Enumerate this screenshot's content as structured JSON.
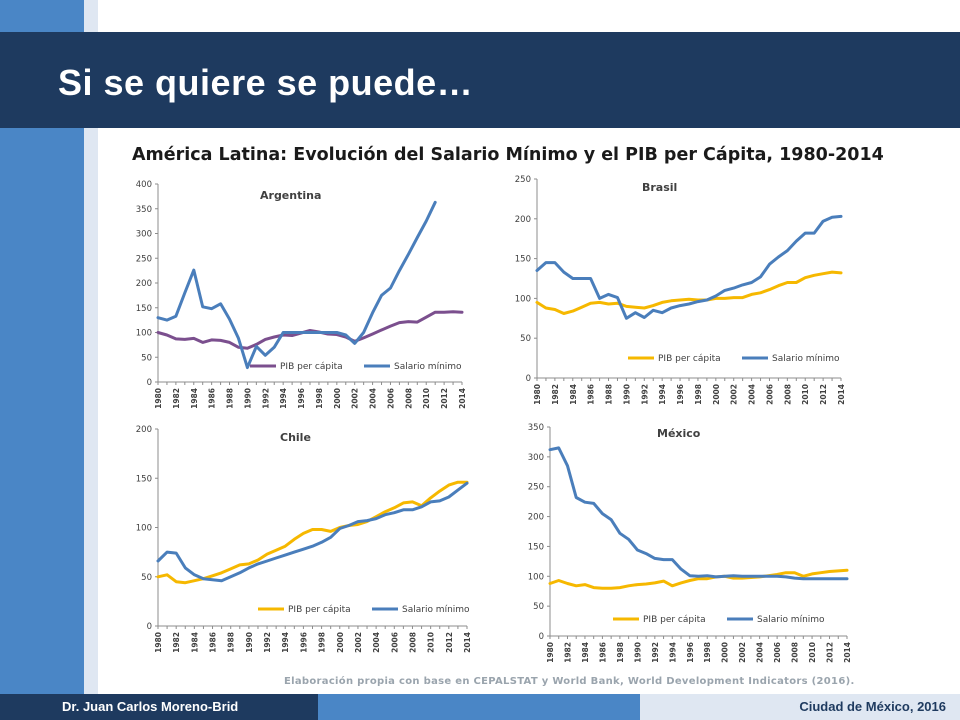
{
  "slide": {
    "title": "Si se quiere se puede…",
    "subtitle": "América Latina: Evolución del Salario Mínimo y el PIB per Cápita, 1980-2014",
    "source_note": "Elaboración propia con base en CEPALSTAT y World Bank, World Development Indicators (2016).",
    "footer_left": "Dr. Juan Carlos Moreno-Brid",
    "footer_right": "Ciudad de México, 2016"
  },
  "colors": {
    "title_bar": "#1e3a5f",
    "accent_blue": "#4a86c6",
    "light_blue": "#dfe7f2"
  },
  "chart_data": [
    {
      "id": "argentina",
      "type": "line",
      "title": "Argentina",
      "ylim": [
        0,
        400
      ],
      "ytick_step": 50,
      "x_start": 1980,
      "x_tick_labels": [
        "1980",
        "1982",
        "1984",
        "1986",
        "1988",
        "1990",
        "1992",
        "1994",
        "1996",
        "1998",
        "2000",
        "2002",
        "2004",
        "2006",
        "2008",
        "2010",
        "2012",
        "2014"
      ],
      "legend_position": "bottom-right",
      "series": [
        {
          "name": "PIB per cápita",
          "color": "#7b4f8e",
          "values": [
            100,
            95,
            87,
            86,
            88,
            80,
            85,
            84,
            80,
            70,
            68,
            76,
            86,
            91,
            95,
            94,
            99,
            104,
            101,
            97,
            96,
            91,
            82,
            89,
            97,
            105,
            113,
            120,
            122,
            121,
            131,
            141,
            141,
            142,
            141
          ]
        },
        {
          "name": "Salario mínimo",
          "color": "#4a7ebb",
          "values": [
            130,
            125,
            133,
            180,
            226,
            152,
            148,
            158,
            127,
            88,
            29,
            72,
            54,
            70,
            100,
            100,
            100,
            100,
            100,
            100,
            100,
            95,
            78,
            100,
            140,
            175,
            190,
            225,
            258,
            292,
            325,
            363
          ]
        }
      ]
    },
    {
      "id": "brasil",
      "type": "line",
      "title": "Brasil",
      "ylim": [
        0,
        250
      ],
      "ytick_step": 50,
      "x_start": 1980,
      "x_tick_labels": [
        "1980",
        "1982",
        "1984",
        "1986",
        "1988",
        "1990",
        "1992",
        "1994",
        "1996",
        "1998",
        "2000",
        "2002",
        "2004",
        "2006",
        "2008",
        "2010",
        "2012",
        "2014"
      ],
      "legend_position": "bottom-right",
      "series": [
        {
          "name": "PIB per cápita",
          "color": "#f6b800",
          "values": [
            95,
            88,
            86,
            81,
            84,
            89,
            94,
            95,
            93,
            94,
            90,
            89,
            88,
            91,
            95,
            97,
            98,
            99,
            98,
            98,
            100,
            100,
            101,
            101,
            105,
            107,
            111,
            116,
            120,
            120,
            126,
            129,
            131,
            133,
            132
          ]
        },
        {
          "name": "Salario mínimo",
          "color": "#4a7ebb",
          "values": [
            135,
            145,
            145,
            133,
            125,
            125,
            125,
            100,
            105,
            101,
            75,
            82,
            76,
            85,
            82,
            88,
            91,
            93,
            96,
            98,
            103,
            110,
            113,
            117,
            120,
            127,
            143,
            152,
            160,
            172,
            182,
            182,
            197,
            202,
            203
          ]
        }
      ]
    },
    {
      "id": "chile",
      "type": "line",
      "title": "Chile",
      "ylim": [
        0,
        200
      ],
      "ytick_step": 50,
      "x_start": 1980,
      "x_tick_labels": [
        "1980",
        "1982",
        "1984",
        "1986",
        "1988",
        "1990",
        "1992",
        "1994",
        "1996",
        "1998",
        "2000",
        "2002",
        "2004",
        "2006",
        "2008",
        "2010",
        "2012",
        "2014"
      ],
      "legend_position": "bottom-right",
      "series": [
        {
          "name": "PIB per cápita",
          "color": "#f6b800",
          "values": [
            50,
            52,
            45,
            44,
            46,
            48,
            51,
            54,
            58,
            62,
            63,
            67,
            73,
            77,
            81,
            88,
            94,
            98,
            98,
            96,
            100,
            102,
            103,
            106,
            111,
            116,
            120,
            125,
            126,
            122,
            130,
            137,
            143,
            146,
            146
          ]
        },
        {
          "name": "Salario mínimo",
          "color": "#4a7ebb",
          "values": [
            66,
            75,
            74,
            59,
            52,
            48,
            47,
            46,
            50,
            54,
            59,
            63,
            66,
            69,
            72,
            75,
            78,
            81,
            85,
            90,
            99,
            102,
            106,
            107,
            109,
            113,
            115,
            118,
            118,
            121,
            126,
            127,
            131,
            138,
            145
          ]
        }
      ]
    },
    {
      "id": "mexico",
      "type": "line",
      "title": "México",
      "ylim": [
        0,
        350
      ],
      "ytick_step": 50,
      "x_start": 1980,
      "x_tick_labels": [
        "1980",
        "1982",
        "1984",
        "1986",
        "1988",
        "1990",
        "1992",
        "1994",
        "1996",
        "1998",
        "2000",
        "2002",
        "2004",
        "2006",
        "2008",
        "2010",
        "2012",
        "2014"
      ],
      "legend_position": "bottom-right",
      "series": [
        {
          "name": "PIB per cápita",
          "color": "#f6b800",
          "values": [
            88,
            93,
            88,
            84,
            86,
            81,
            80,
            80,
            81,
            84,
            86,
            87,
            89,
            92,
            84,
            89,
            93,
            96,
            96,
            99,
            100,
            97,
            97,
            98,
            99,
            101,
            103,
            106,
            106,
            100,
            104,
            106,
            108,
            109,
            110
          ]
        },
        {
          "name": "Salario mínimo",
          "color": "#4a7ebb",
          "values": [
            312,
            315,
            285,
            232,
            224,
            222,
            205,
            195,
            172,
            162,
            144,
            138,
            130,
            128,
            128,
            112,
            101,
            100,
            101,
            99,
            100,
            101,
            100,
            100,
            100,
            100,
            100,
            99,
            97,
            96,
            96,
            96,
            96,
            96,
            96
          ]
        }
      ]
    }
  ]
}
